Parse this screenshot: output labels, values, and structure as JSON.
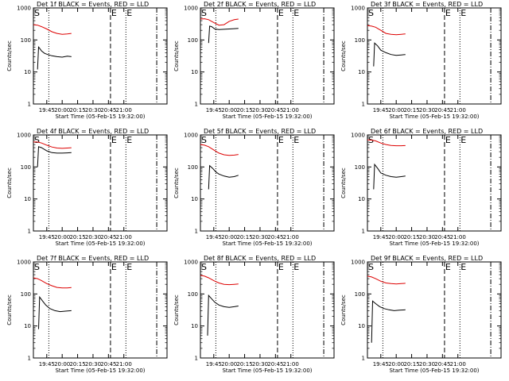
{
  "colors": {
    "events": "#000000",
    "lld": "#dd0000",
    "axis": "#000000",
    "background": "#ffffff"
  },
  "chart_data": [
    {
      "type": "line",
      "title": "Det 1f BLACK = Events, RED = LLD",
      "xlabel": "Start Time (05-Feb-15 19:32:00)",
      "ylabel": "Counts/sec",
      "y_scale": "log",
      "ylim": [
        1,
        1000
      ],
      "y_ticks": [
        "1",
        "10",
        "100",
        "1000"
      ],
      "x_ticks": [
        "19:45",
        "20:00",
        "20:15",
        "20:30",
        "20:45",
        "21:00"
      ],
      "xlim": [
        "19:32",
        "21:42"
      ],
      "markers": [
        "S",
        "E",
        "E"
      ],
      "series": [
        {
          "color": "#000000",
          "x": [
            "19:36",
            "19:37",
            "19:38",
            "19:40",
            "19:43",
            "19:46",
            "19:50",
            "19:55",
            "20:00",
            "20:05",
            "20:09"
          ],
          "y": [
            12,
            60,
            55,
            45,
            38,
            35,
            32,
            30,
            29,
            31,
            30
          ]
        },
        {
          "color": "#dd0000",
          "x": [
            "19:32",
            "19:36",
            "19:40",
            "19:45",
            "19:50",
            "19:55",
            "20:00",
            "20:05",
            "20:09"
          ],
          "y": [
            300,
            290,
            260,
            220,
            180,
            160,
            150,
            155,
            160
          ]
        }
      ]
    },
    {
      "type": "line",
      "title": "Det 2f BLACK = Events, RED = LLD",
      "xlabel": "Start Time (05-Feb-15 19:32:00)",
      "ylabel": "Counts/sec",
      "y_scale": "log",
      "ylim": [
        1,
        1000
      ],
      "y_ticks": [
        "1",
        "10",
        "100",
        "1000"
      ],
      "x_ticks": [
        "19:45",
        "20:00",
        "20:15",
        "20:30",
        "20:45",
        "21:00"
      ],
      "xlim": [
        "19:32",
        "21:42"
      ],
      "markers": [
        "S",
        "E",
        "E"
      ],
      "series": [
        {
          "color": "#000000",
          "x": [
            "19:40",
            "19:41",
            "19:43",
            "19:46",
            "19:50",
            "19:55",
            "20:00",
            "20:05",
            "20:09"
          ],
          "y": [
            80,
            270,
            260,
            220,
            210,
            215,
            220,
            225,
            230
          ]
        },
        {
          "color": "#dd0000",
          "x": [
            "19:32",
            "19:36",
            "19:40",
            "19:45",
            "19:50",
            "19:55",
            "20:00",
            "20:05",
            "20:09"
          ],
          "y": [
            450,
            460,
            430,
            350,
            290,
            300,
            380,
            430,
            450
          ]
        }
      ]
    },
    {
      "type": "line",
      "title": "Det 3f BLACK = Events, RED = LLD",
      "xlabel": "Start Time (05-Feb-15 19:32:00)",
      "ylabel": "Counts/sec",
      "y_scale": "log",
      "ylim": [
        1,
        1000
      ],
      "y_ticks": [
        "1",
        "10",
        "100",
        "1000"
      ],
      "x_ticks": [
        "19:45",
        "20:00",
        "20:15",
        "20:30",
        "20:45",
        "21:00"
      ],
      "xlim": [
        "19:32",
        "21:42"
      ],
      "markers": [
        "S",
        "E",
        "E"
      ],
      "series": [
        {
          "color": "#000000",
          "x": [
            "19:38",
            "19:39",
            "19:42",
            "19:45",
            "19:50",
            "19:55",
            "20:00",
            "20:05",
            "20:09"
          ],
          "y": [
            15,
            80,
            65,
            48,
            40,
            35,
            33,
            34,
            35
          ]
        },
        {
          "color": "#dd0000",
          "x": [
            "19:32",
            "19:36",
            "19:40",
            "19:45",
            "19:50",
            "19:55",
            "20:00",
            "20:05",
            "20:09"
          ],
          "y": [
            280,
            270,
            250,
            200,
            160,
            150,
            145,
            150,
            155
          ]
        }
      ]
    },
    {
      "type": "line",
      "title": "Det 4f BLACK = Events, RED = LLD",
      "xlabel": "Start Time (05-Feb-15 19:32:00)",
      "ylabel": "Counts/sec",
      "y_scale": "log",
      "ylim": [
        1,
        1000
      ],
      "y_ticks": [
        "1",
        "10",
        "100",
        "1000"
      ],
      "x_ticks": [
        "19:45",
        "20:00",
        "20:15",
        "20:30",
        "20:45",
        "21:00"
      ],
      "xlim": [
        "19:32",
        "21:42"
      ],
      "markers": [
        "S",
        "E",
        "E"
      ],
      "series": [
        {
          "color": "#000000",
          "x": [
            "19:36",
            "19:37",
            "19:40",
            "19:45",
            "19:50",
            "19:55",
            "20:00",
            "20:05",
            "20:09"
          ],
          "y": [
            100,
            430,
            400,
            320,
            280,
            270,
            270,
            275,
            280
          ]
        },
        {
          "color": "#dd0000",
          "x": [
            "19:32",
            "19:36",
            "19:40",
            "19:45",
            "19:50",
            "19:55",
            "20:00",
            "20:05",
            "20:09"
          ],
          "y": [
            600,
            600,
            560,
            480,
            420,
            390,
            380,
            390,
            400
          ]
        }
      ]
    },
    {
      "type": "line",
      "title": "Det 5f BLACK = Events, RED = LLD",
      "xlabel": "Start Time (05-Feb-15 19:32:00)",
      "ylabel": "Counts/sec",
      "y_scale": "log",
      "ylim": [
        1,
        1000
      ],
      "y_ticks": [
        "1",
        "10",
        "100",
        "1000"
      ],
      "x_ticks": [
        "19:45",
        "20:00",
        "20:15",
        "20:30",
        "20:45",
        "21:00"
      ],
      "xlim": [
        "19:32",
        "21:42"
      ],
      "markers": [
        "S",
        "E",
        "E"
      ],
      "series": [
        {
          "color": "#000000",
          "x": [
            "19:40",
            "19:41",
            "19:44",
            "19:47",
            "19:50",
            "19:55",
            "20:00",
            "20:05",
            "20:09"
          ],
          "y": [
            20,
            110,
            90,
            70,
            60,
            52,
            48,
            50,
            55
          ]
        },
        {
          "color": "#dd0000",
          "x": [
            "19:32",
            "19:36",
            "19:40",
            "19:45",
            "19:50",
            "19:55",
            "20:00",
            "20:05",
            "20:09"
          ],
          "y": [
            500,
            480,
            430,
            340,
            270,
            240,
            230,
            235,
            245
          ]
        }
      ]
    },
    {
      "type": "line",
      "title": "Det 6f BLACK = Events, RED = LLD",
      "xlabel": "Start Time (05-Feb-15 19:32:00)",
      "ylabel": "Counts/sec",
      "y_scale": "log",
      "ylim": [
        1,
        1000
      ],
      "y_ticks": [
        "1",
        "10",
        "100",
        "1000"
      ],
      "x_ticks": [
        "19:45",
        "20:00",
        "20:15",
        "20:30",
        "20:45",
        "21:00"
      ],
      "xlim": [
        "19:32",
        "21:42"
      ],
      "markers": [
        "S",
        "E",
        "E"
      ],
      "series": [
        {
          "color": "#000000",
          "x": [
            "19:38",
            "19:39",
            "19:42",
            "19:45",
            "19:50",
            "19:55",
            "20:00",
            "20:05",
            "20:09"
          ],
          "y": [
            20,
            120,
            90,
            65,
            55,
            50,
            48,
            50,
            52
          ]
        },
        {
          "color": "#dd0000",
          "x": [
            "19:32",
            "19:36",
            "19:40",
            "19:45",
            "19:50",
            "19:55",
            "20:00",
            "20:05",
            "20:09"
          ],
          "y": [
            700,
            690,
            650,
            560,
            500,
            470,
            460,
            460,
            465
          ]
        }
      ]
    },
    {
      "type": "line",
      "title": "Det 7f BLACK = Events, RED = LLD",
      "xlabel": "Start Time (05-Feb-15 19:32:00)",
      "ylabel": "Counts/sec",
      "y_scale": "log",
      "ylim": [
        1,
        1000
      ],
      "y_ticks": [
        "1",
        "10",
        "100",
        "1000"
      ],
      "x_ticks": [
        "19:45",
        "20:00",
        "20:15",
        "20:30",
        "20:45",
        "21:00"
      ],
      "xlim": [
        "19:32",
        "21:42"
      ],
      "markers": [
        "S",
        "E",
        "E"
      ],
      "series": [
        {
          "color": "#000000",
          "x": [
            "19:37",
            "19:38",
            "19:41",
            "19:44",
            "19:48",
            "19:53",
            "19:58",
            "20:03",
            "20:09"
          ],
          "y": [
            8,
            80,
            60,
            45,
            35,
            30,
            28,
            29,
            30
          ]
        },
        {
          "color": "#dd0000",
          "x": [
            "19:32",
            "19:36",
            "19:40",
            "19:45",
            "19:50",
            "19:55",
            "20:00",
            "20:05",
            "20:09"
          ],
          "y": [
            320,
            300,
            260,
            210,
            180,
            160,
            155,
            155,
            158
          ]
        }
      ]
    },
    {
      "type": "line",
      "title": "Det 8f BLACK = Events, RED = LLD",
      "xlabel": "Start Time (05-Feb-15 19:32:00)",
      "ylabel": "Counts/sec",
      "y_scale": "log",
      "ylim": [
        1,
        1000
      ],
      "y_ticks": [
        "1",
        "10",
        "100",
        "1000"
      ],
      "x_ticks": [
        "19:45",
        "20:00",
        "20:15",
        "20:30",
        "20:45",
        "21:00"
      ],
      "xlim": [
        "19:32",
        "21:42"
      ],
      "markers": [
        "S",
        "E",
        "E"
      ],
      "series": [
        {
          "color": "#000000",
          "x": [
            "19:39",
            "19:40",
            "19:43",
            "19:46",
            "19:50",
            "19:55",
            "20:00",
            "20:05",
            "20:09"
          ],
          "y": [
            5,
            90,
            70,
            55,
            45,
            40,
            38,
            40,
            42
          ]
        },
        {
          "color": "#dd0000",
          "x": [
            "19:32",
            "19:36",
            "19:40",
            "19:45",
            "19:50",
            "19:55",
            "20:00",
            "20:05",
            "20:09"
          ],
          "y": [
            380,
            360,
            320,
            260,
            220,
            200,
            195,
            200,
            205
          ]
        }
      ]
    },
    {
      "type": "line",
      "title": "Det 9f BLACK = Events, RED = LLD",
      "xlabel": "Start Time (05-Feb-15 19:32:00)",
      "ylabel": "Counts/sec",
      "y_scale": "log",
      "ylim": [
        1,
        1000
      ],
      "y_ticks": [
        "1",
        "10",
        "100",
        "1000"
      ],
      "x_ticks": [
        "19:45",
        "20:00",
        "20:15",
        "20:30",
        "20:45",
        "21:00"
      ],
      "xlim": [
        "19:32",
        "21:42"
      ],
      "markers": [
        "S",
        "E",
        "E"
      ],
      "series": [
        {
          "color": "#000000",
          "x": [
            "19:36",
            "19:37",
            "19:40",
            "19:44",
            "19:48",
            "19:53",
            "19:58",
            "20:03",
            "20:09"
          ],
          "y": [
            3,
            60,
            50,
            40,
            35,
            32,
            30,
            31,
            32
          ]
        },
        {
          "color": "#dd0000",
          "x": [
            "19:32",
            "19:36",
            "19:40",
            "19:45",
            "19:50",
            "19:55",
            "20:00",
            "20:05",
            "20:09"
          ],
          "y": [
            360,
            340,
            300,
            250,
            220,
            210,
            205,
            210,
            215
          ]
        }
      ]
    }
  ]
}
